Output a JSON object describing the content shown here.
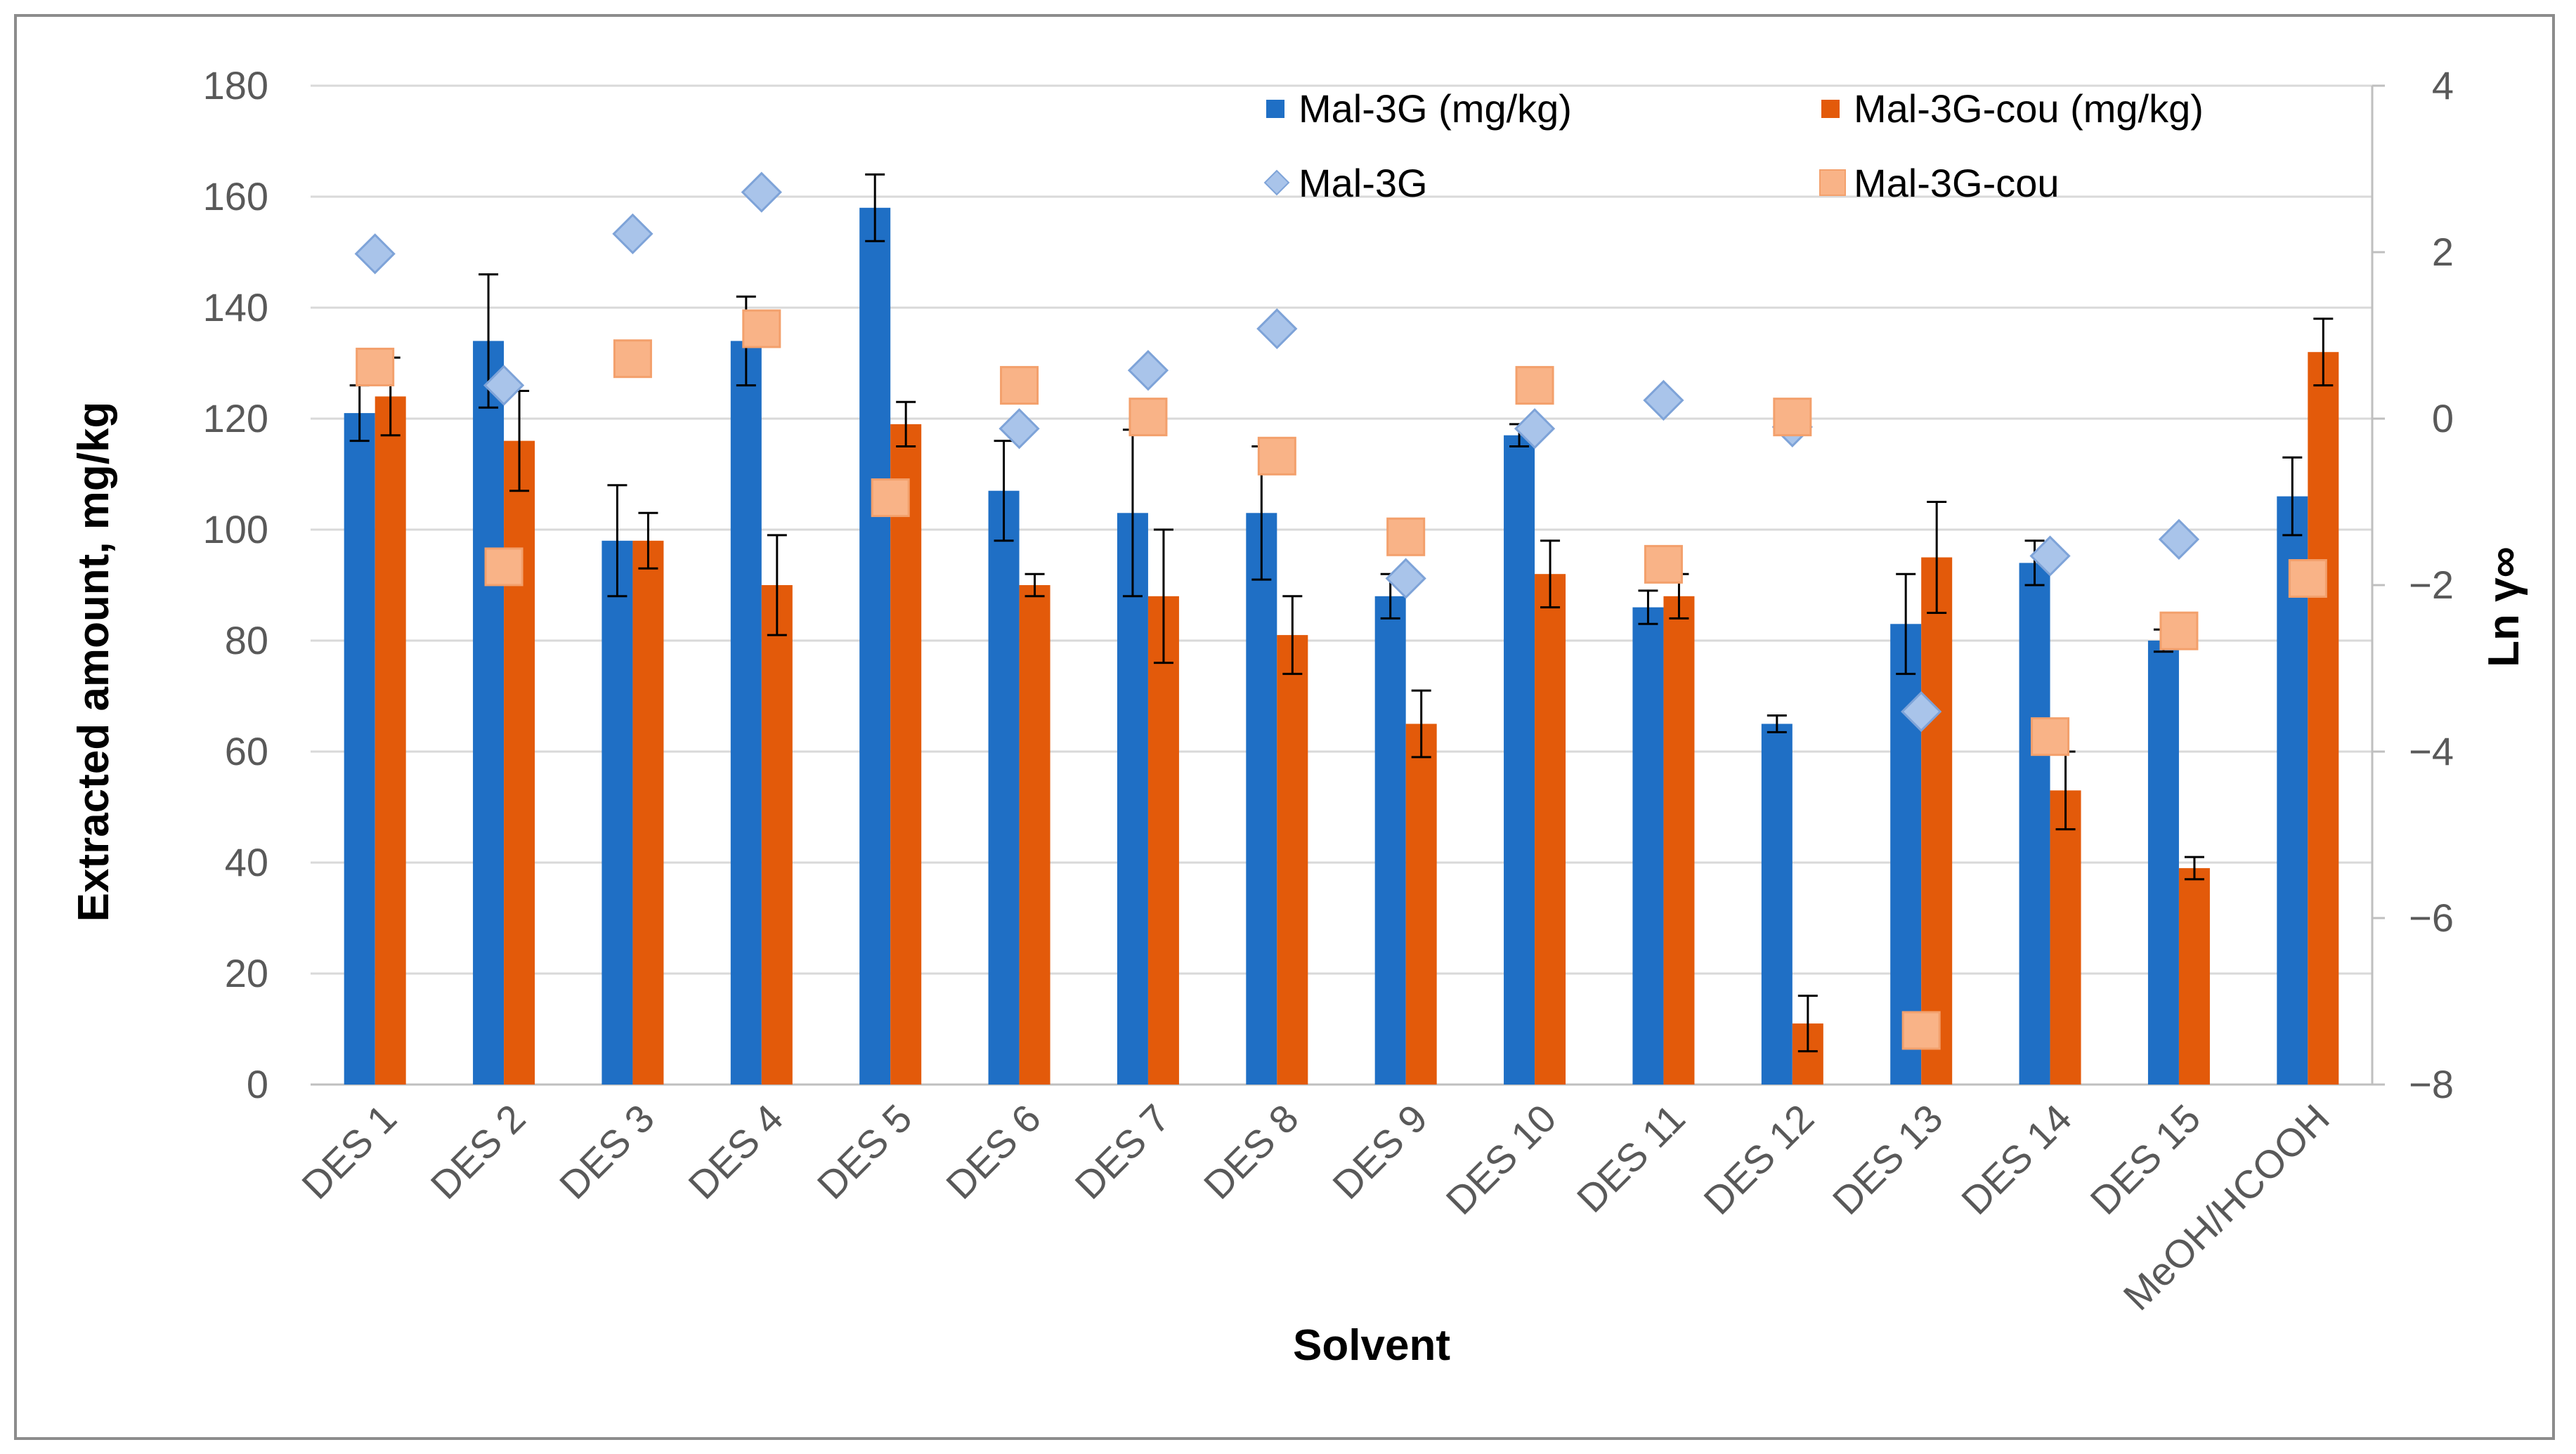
{
  "chart_data": {
    "type": "bar",
    "xlabel": "Solvent",
    "ylabel": "Extracted amount, mg/kg",
    "y2label": "Ln γ∞",
    "ylim": [
      0,
      180
    ],
    "y2lim": [
      -8,
      4
    ],
    "yticks": [
      "0",
      "20",
      "40",
      "60",
      "80",
      "100",
      "120",
      "140",
      "160",
      "180"
    ],
    "y2ticks": [
      "−8",
      "−6",
      "−4",
      "−2",
      "0",
      "2",
      "4"
    ],
    "grid": true,
    "legend_position": "top-right",
    "categories": [
      "DES 1",
      "DES 2",
      "DES 3",
      "DES 4",
      "DES 5",
      "DES 6",
      "DES 7",
      "DES 8",
      "DES 9",
      "DES 10",
      "DES 11",
      "DES 12",
      "DES 13",
      "DES 14",
      "DES 15",
      "MeOH/HCOOH"
    ],
    "series": [
      {
        "name": "Mal-3G (mg/kg)",
        "kind": "bar",
        "axis": "left",
        "color": "#1f6fc5",
        "values": [
          121,
          134,
          98,
          134,
          158,
          107,
          103,
          103,
          88,
          117,
          86,
          65,
          83,
          94,
          80,
          106
        ],
        "errors": [
          5,
          12,
          10,
          8,
          6,
          9,
          15,
          12,
          4,
          2,
          3,
          1.5,
          9,
          4,
          2,
          7
        ]
      },
      {
        "name": "Mal-3G-cou  (mg/kg)",
        "kind": "bar",
        "axis": "left",
        "color": "#e35a0a",
        "values": [
          124,
          116,
          98,
          90,
          119,
          90,
          88,
          81,
          65,
          92,
          88,
          11,
          95,
          53,
          39,
          132
        ],
        "errors": [
          7,
          9,
          5,
          9,
          4,
          2,
          12,
          7,
          6,
          6,
          4,
          5,
          10,
          7,
          2,
          6
        ]
      },
      {
        "name": "Mal-3G",
        "kind": "scatter",
        "marker": "diamond",
        "axis": "right",
        "color": "#a9c4ea",
        "values": [
          1.98,
          0.4,
          2.22,
          2.72,
          null,
          -0.12,
          0.58,
          1.08,
          -1.92,
          -0.12,
          0.22,
          -0.1,
          -3.52,
          -1.65,
          -1.45,
          null
        ]
      },
      {
        "name": "Mal-3G-cou",
        "kind": "scatter",
        "marker": "square",
        "axis": "right",
        "color": "#f9b387",
        "values": [
          0.62,
          -1.78,
          0.72,
          1.08,
          -0.95,
          0.4,
          0.02,
          -0.45,
          -1.42,
          0.4,
          -1.75,
          0.02,
          -7.35,
          -3.82,
          -2.55,
          -1.92
        ]
      }
    ]
  }
}
